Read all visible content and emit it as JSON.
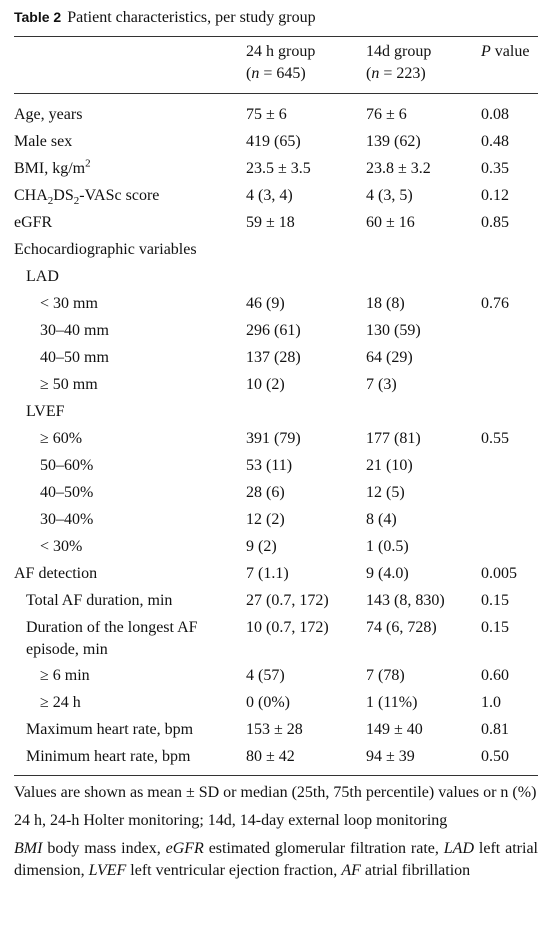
{
  "caption": {
    "label": "Table 2",
    "text": "Patient characteristics, per study group"
  },
  "columns": [
    {
      "name": "24 h group",
      "n": [
        "(",
        {
          "i": "n"
        },
        " = 645)"
      ]
    },
    {
      "name": "14d group",
      "n": [
        "(",
        {
          "i": "n"
        },
        " = 223)"
      ]
    },
    {
      "name": [
        {
          "i": "P"
        },
        " value"
      ]
    }
  ],
  "rows": [
    {
      "label": "Age, years",
      "level": 0,
      "cells": [
        "75 ± 6",
        "76 ± 6",
        "0.08"
      ]
    },
    {
      "label": "Male sex",
      "level": 0,
      "cells": [
        "419 (65)",
        "139 (62)",
        "0.48"
      ]
    },
    {
      "label": [
        "BMI, kg/m",
        {
          "sup": "2"
        }
      ],
      "level": 0,
      "cells": [
        "23.5 ± 3.5",
        "23.8 ± 3.2",
        "0.35"
      ]
    },
    {
      "label": [
        "CHA",
        {
          "sub": "2"
        },
        "DS",
        {
          "sub": "2"
        },
        "-VASc score"
      ],
      "level": 0,
      "cells": [
        "4 (3, 4)",
        "4 (3, 5)",
        "0.12"
      ]
    },
    {
      "label": "eGFR",
      "level": 0,
      "cells": [
        "59 ± 18",
        "60 ± 16",
        "0.85"
      ]
    },
    {
      "label": "Echocardiographic variables",
      "level": 0
    },
    {
      "label": "LAD",
      "level": 1
    },
    {
      "label": "< 30 mm",
      "level": 2,
      "cells": [
        "46 (9)",
        "18 (8)",
        "0.76"
      ]
    },
    {
      "label": "30–40 mm",
      "level": 2,
      "cells": [
        "296 (61)",
        "130 (59)",
        null
      ]
    },
    {
      "label": "40–50 mm",
      "level": 2,
      "cells": [
        "137 (28)",
        "64 (29)",
        null
      ]
    },
    {
      "label": "≥ 50 mm",
      "level": 2,
      "cells": [
        "10 (2)",
        "7 (3)",
        null
      ]
    },
    {
      "label": "LVEF",
      "level": 1
    },
    {
      "label": "≥ 60%",
      "level": 2,
      "cells": [
        "391 (79)",
        "177 (81)",
        "0.55"
      ]
    },
    {
      "label": "50–60%",
      "level": 2,
      "cells": [
        "53 (11)",
        "21 (10)",
        null
      ]
    },
    {
      "label": "40–50%",
      "level": 2,
      "cells": [
        "28 (6)",
        "12 (5)",
        null
      ]
    },
    {
      "label": "30–40%",
      "level": 2,
      "cells": [
        "12 (2)",
        "8 (4)",
        null
      ]
    },
    {
      "label": "< 30%",
      "level": 2,
      "cells": [
        "9 (2)",
        "1 (0.5)",
        null
      ]
    },
    {
      "label": "AF detection",
      "level": 0,
      "cells": [
        "7 (1.1)",
        "9 (4.0)",
        "0.005"
      ]
    },
    {
      "label": "Total AF duration, min",
      "level": 1,
      "cells": [
        "27 (0.7, 172)",
        "143 (8, 830)",
        "0.15"
      ]
    },
    {
      "label": "Duration of the longest AF episode, min",
      "level": 1,
      "cells": [
        "10 (0.7, 172)",
        "74 (6, 728)",
        "0.15"
      ]
    },
    {
      "label": "≥ 6 min",
      "level": 2,
      "cells": [
        "4 (57)",
        "7 (78)",
        "0.60"
      ]
    },
    {
      "label": "≥ 24 h",
      "level": 2,
      "cells": [
        "0 (0%)",
        "1 (11%)",
        "1.0"
      ]
    },
    {
      "label": "Maximum heart rate, bpm",
      "level": 1,
      "cells": [
        "153 ± 28",
        "149 ± 40",
        "0.81"
      ]
    },
    {
      "label": "Minimum heart rate, bpm",
      "level": 1,
      "cells": [
        "80 ± 42",
        "94 ± 39",
        "0.50"
      ]
    }
  ],
  "footnotes": [
    [
      "Values are shown as mean ± SD or median (25th, 75th percentile) values or n (%)"
    ],
    [
      "24 h, 24-h Holter monitoring; 14d, 14-day external loop monitoring"
    ],
    [
      {
        "i": "BMI"
      },
      " body mass index, ",
      {
        "i": "eGFR"
      },
      " estimated glomerular filtration rate, ",
      {
        "i": "LAD"
      },
      " left atrial dimension, ",
      {
        "i": "LVEF"
      },
      " left ventricular ejection fraction, ",
      {
        "i": "AF"
      },
      " atrial fibrillation"
    ]
  ]
}
